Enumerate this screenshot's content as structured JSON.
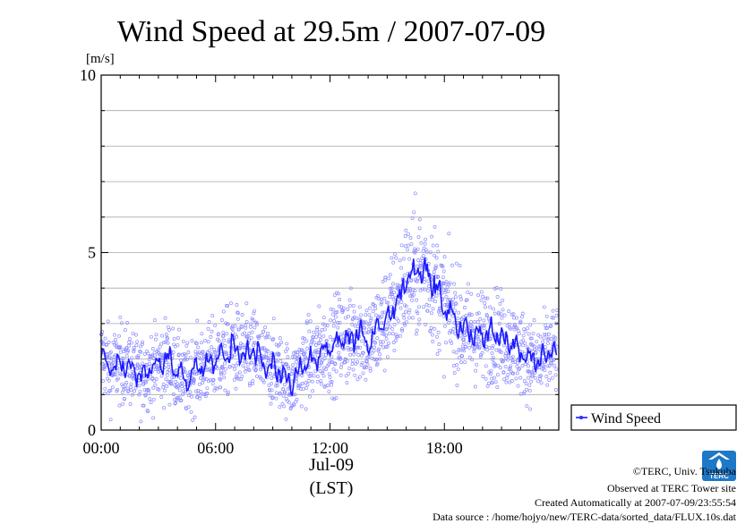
{
  "chart_data": {
    "type": "line",
    "title": "Wind Speed at 29.5m / 2007-07-09",
    "ylabel": "[m/s]",
    "xlabel": "(LST)",
    "date_label": "Jul-09",
    "ylim": [
      0,
      10
    ],
    "y_ticks": [
      "0",
      "5",
      "10"
    ],
    "y_tick_values": [
      0,
      5,
      10
    ],
    "xlim": [
      0,
      24
    ],
    "x_ticks": [
      "00:00",
      "06:00",
      "12:00",
      "18:00"
    ],
    "x_tick_values": [
      0,
      6,
      12,
      18
    ],
    "grid": "horizontal",
    "legend_position": "right",
    "series": [
      {
        "name": "Wind Speed",
        "color": "#1a1aff",
        "scatter_color": "#8c8cff",
        "x_hours": [
          0,
          0.5,
          1,
          1.5,
          2,
          2.5,
          3,
          3.5,
          4,
          4.5,
          5,
          5.5,
          6,
          6.5,
          7,
          7.5,
          8,
          8.5,
          9,
          9.5,
          10,
          10.5,
          11,
          11.5,
          12,
          12.5,
          13,
          13.5,
          14,
          14.5,
          15,
          15.5,
          16,
          16.5,
          17,
          17.5,
          18,
          18.5,
          19,
          19.5,
          20,
          20.5,
          21,
          21.5,
          22,
          22.5,
          23,
          23.5
        ],
        "values": [
          2.1,
          1.7,
          1.9,
          1.8,
          1.5,
          1.7,
          1.8,
          2.0,
          1.6,
          1.4,
          1.7,
          1.8,
          2.0,
          2.2,
          2.3,
          2.1,
          2.2,
          1.9,
          1.8,
          1.6,
          1.3,
          1.8,
          2.0,
          2.2,
          2.3,
          2.6,
          2.5,
          2.8,
          2.4,
          2.8,
          3.2,
          3.6,
          4.2,
          4.4,
          4.5,
          4.1,
          3.5,
          3.2,
          2.8,
          2.7,
          2.6,
          2.7,
          2.6,
          2.4,
          2.2,
          2.0,
          1.9,
          2.2
        ]
      }
    ]
  },
  "credits": {
    "copyright": "©TERC, Univ. Tsukuba",
    "observed": "Observed at TERC Tower site",
    "created": "Created Automatically at 2007-07-09/23:55:54",
    "source": "Data source : /home/hojyo/new/TERC-data/sorted_data/FLUX.10s.dat"
  },
  "logo": {
    "text": "TERC",
    "color": "#1e78c8"
  }
}
